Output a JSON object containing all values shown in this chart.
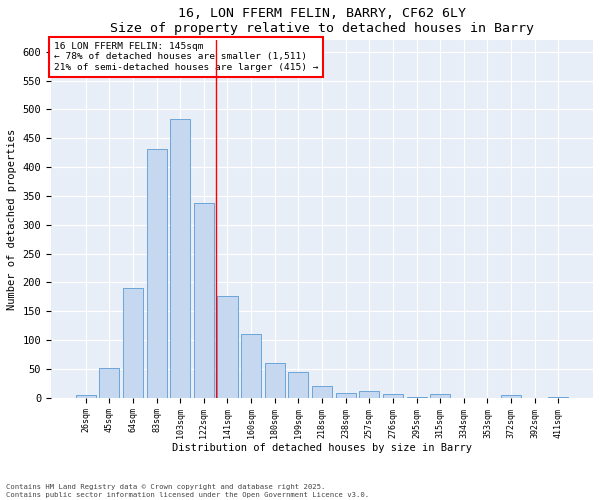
{
  "title": "16, LON FFERM FELIN, BARRY, CF62 6LY",
  "subtitle": "Size of property relative to detached houses in Barry",
  "xlabel": "Distribution of detached houses by size in Barry",
  "ylabel": "Number of detached properties",
  "categories": [
    "26sqm",
    "45sqm",
    "64sqm",
    "83sqm",
    "103sqm",
    "122sqm",
    "141sqm",
    "160sqm",
    "180sqm",
    "199sqm",
    "218sqm",
    "238sqm",
    "257sqm",
    "276sqm",
    "295sqm",
    "315sqm",
    "334sqm",
    "353sqm",
    "372sqm",
    "392sqm",
    "411sqm"
  ],
  "values": [
    5,
    52,
    190,
    432,
    483,
    338,
    177,
    110,
    60,
    45,
    20,
    8,
    11,
    6,
    2,
    7,
    0,
    0,
    5,
    0,
    2
  ],
  "bar_color": "#c5d8f0",
  "bar_edge_color": "#5b9bd5",
  "annotation_line1": "16 LON FFERM FELIN: 145sqm",
  "annotation_line2": "← 78% of detached houses are smaller (1,511)",
  "annotation_line3": "21% of semi-detached houses are larger (415) →",
  "ylim": [
    0,
    620
  ],
  "yticks": [
    0,
    50,
    100,
    150,
    200,
    250,
    300,
    350,
    400,
    450,
    500,
    550,
    600
  ],
  "footer_line1": "Contains HM Land Registry data © Crown copyright and database right 2025.",
  "footer_line2": "Contains public sector information licensed under the Open Government Licence v3.0.",
  "bg_color": "#ffffff",
  "plot_bg_color": "#e8eef7"
}
